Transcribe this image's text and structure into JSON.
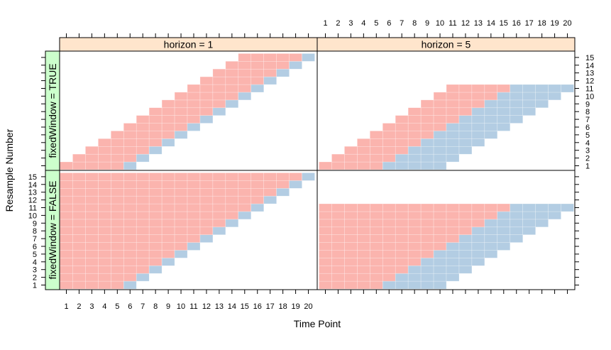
{
  "chart_data": {
    "type": "heatmap",
    "title": "",
    "xlabel": "Time Point",
    "ylabel": "Resample Number",
    "x_ticks": [
      1,
      2,
      3,
      4,
      5,
      6,
      7,
      8,
      9,
      10,
      11,
      12,
      13,
      14,
      15,
      16,
      17,
      18,
      19,
      20
    ],
    "y_ticks": [
      1,
      2,
      3,
      4,
      5,
      6,
      7,
      8,
      9,
      10,
      11,
      12,
      13,
      14,
      15
    ],
    "xlim": [
      1,
      20
    ],
    "ylim": [
      1,
      15
    ],
    "column_strips": [
      "horizon = 1",
      "horizon = 5"
    ],
    "row_strips": [
      "fixedWindow = TRUE",
      "fixedWindow = FALSE"
    ],
    "legend": "none",
    "colors": {
      "training": "#fbb4ae",
      "testing": "#b3cde3",
      "column_strip_bg": "#ffe5cc",
      "row_strip_bg": "#ccffcc"
    },
    "panels": [
      {
        "horizon": 1,
        "fixedWindow": true,
        "resamples": [
          {
            "resample": 1,
            "train": [
              1,
              5
            ],
            "test": [
              6,
              6
            ]
          },
          {
            "resample": 2,
            "train": [
              2,
              6
            ],
            "test": [
              7,
              7
            ]
          },
          {
            "resample": 3,
            "train": [
              3,
              7
            ],
            "test": [
              8,
              8
            ]
          },
          {
            "resample": 4,
            "train": [
              4,
              8
            ],
            "test": [
              9,
              9
            ]
          },
          {
            "resample": 5,
            "train": [
              5,
              9
            ],
            "test": [
              10,
              10
            ]
          },
          {
            "resample": 6,
            "train": [
              6,
              10
            ],
            "test": [
              11,
              11
            ]
          },
          {
            "resample": 7,
            "train": [
              7,
              11
            ],
            "test": [
              12,
              12
            ]
          },
          {
            "resample": 8,
            "train": [
              8,
              12
            ],
            "test": [
              13,
              13
            ]
          },
          {
            "resample": 9,
            "train": [
              9,
              13
            ],
            "test": [
              14,
              14
            ]
          },
          {
            "resample": 10,
            "train": [
              10,
              14
            ],
            "test": [
              15,
              15
            ]
          },
          {
            "resample": 11,
            "train": [
              11,
              15
            ],
            "test": [
              16,
              16
            ]
          },
          {
            "resample": 12,
            "train": [
              12,
              16
            ],
            "test": [
              17,
              17
            ]
          },
          {
            "resample": 13,
            "train": [
              13,
              17
            ],
            "test": [
              18,
              18
            ]
          },
          {
            "resample": 14,
            "train": [
              14,
              18
            ],
            "test": [
              19,
              19
            ]
          },
          {
            "resample": 15,
            "train": [
              15,
              19
            ],
            "test": [
              20,
              20
            ]
          }
        ]
      },
      {
        "horizon": 5,
        "fixedWindow": true,
        "resamples": [
          {
            "resample": 1,
            "train": [
              1,
              5
            ],
            "test": [
              6,
              10
            ]
          },
          {
            "resample": 2,
            "train": [
              2,
              6
            ],
            "test": [
              7,
              11
            ]
          },
          {
            "resample": 3,
            "train": [
              3,
              7
            ],
            "test": [
              8,
              12
            ]
          },
          {
            "resample": 4,
            "train": [
              4,
              8
            ],
            "test": [
              9,
              13
            ]
          },
          {
            "resample": 5,
            "train": [
              5,
              9
            ],
            "test": [
              10,
              14
            ]
          },
          {
            "resample": 6,
            "train": [
              6,
              10
            ],
            "test": [
              11,
              15
            ]
          },
          {
            "resample": 7,
            "train": [
              7,
              11
            ],
            "test": [
              12,
              16
            ]
          },
          {
            "resample": 8,
            "train": [
              8,
              12
            ],
            "test": [
              13,
              17
            ]
          },
          {
            "resample": 9,
            "train": [
              9,
              13
            ],
            "test": [
              14,
              18
            ]
          },
          {
            "resample": 10,
            "train": [
              10,
              14
            ],
            "test": [
              15,
              19
            ]
          },
          {
            "resample": 11,
            "train": [
              11,
              15
            ],
            "test": [
              16,
              20
            ]
          }
        ]
      },
      {
        "horizon": 1,
        "fixedWindow": false,
        "resamples": [
          {
            "resample": 1,
            "train": [
              1,
              5
            ],
            "test": [
              6,
              6
            ]
          },
          {
            "resample": 2,
            "train": [
              1,
              6
            ],
            "test": [
              7,
              7
            ]
          },
          {
            "resample": 3,
            "train": [
              1,
              7
            ],
            "test": [
              8,
              8
            ]
          },
          {
            "resample": 4,
            "train": [
              1,
              8
            ],
            "test": [
              9,
              9
            ]
          },
          {
            "resample": 5,
            "train": [
              1,
              9
            ],
            "test": [
              10,
              10
            ]
          },
          {
            "resample": 6,
            "train": [
              1,
              10
            ],
            "test": [
              11,
              11
            ]
          },
          {
            "resample": 7,
            "train": [
              1,
              11
            ],
            "test": [
              12,
              12
            ]
          },
          {
            "resample": 8,
            "train": [
              1,
              12
            ],
            "test": [
              13,
              13
            ]
          },
          {
            "resample": 9,
            "train": [
              1,
              13
            ],
            "test": [
              14,
              14
            ]
          },
          {
            "resample": 10,
            "train": [
              1,
              14
            ],
            "test": [
              15,
              15
            ]
          },
          {
            "resample": 11,
            "train": [
              1,
              15
            ],
            "test": [
              16,
              16
            ]
          },
          {
            "resample": 12,
            "train": [
              1,
              16
            ],
            "test": [
              17,
              17
            ]
          },
          {
            "resample": 13,
            "train": [
              1,
              17
            ],
            "test": [
              18,
              18
            ]
          },
          {
            "resample": 14,
            "train": [
              1,
              18
            ],
            "test": [
              19,
              19
            ]
          },
          {
            "resample": 15,
            "train": [
              1,
              19
            ],
            "test": [
              20,
              20
            ]
          }
        ]
      },
      {
        "horizon": 5,
        "fixedWindow": false,
        "resamples": [
          {
            "resample": 1,
            "train": [
              1,
              5
            ],
            "test": [
              6,
              10
            ]
          },
          {
            "resample": 2,
            "train": [
              1,
              6
            ],
            "test": [
              7,
              11
            ]
          },
          {
            "resample": 3,
            "train": [
              1,
              7
            ],
            "test": [
              8,
              12
            ]
          },
          {
            "resample": 4,
            "train": [
              1,
              8
            ],
            "test": [
              9,
              13
            ]
          },
          {
            "resample": 5,
            "train": [
              1,
              9
            ],
            "test": [
              10,
              14
            ]
          },
          {
            "resample": 6,
            "train": [
              1,
              10
            ],
            "test": [
              11,
              15
            ]
          },
          {
            "resample": 7,
            "train": [
              1,
              11
            ],
            "test": [
              12,
              16
            ]
          },
          {
            "resample": 8,
            "train": [
              1,
              12
            ],
            "test": [
              13,
              17
            ]
          },
          {
            "resample": 9,
            "train": [
              1,
              13
            ],
            "test": [
              14,
              18
            ]
          },
          {
            "resample": 10,
            "train": [
              1,
              14
            ],
            "test": [
              15,
              19
            ]
          },
          {
            "resample": 11,
            "train": [
              1,
              15
            ],
            "test": [
              16,
              20
            ]
          }
        ]
      }
    ]
  }
}
